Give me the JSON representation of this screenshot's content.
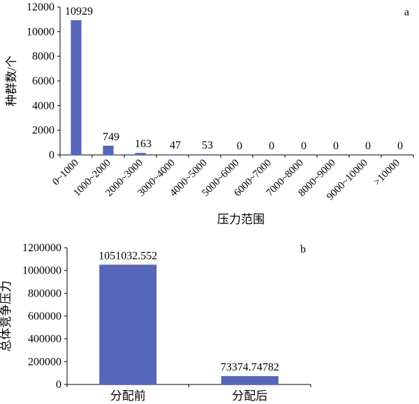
{
  "chart_data": [
    {
      "type": "bar",
      "panel_label": "a",
      "xlabel": "压力范围",
      "ylabel": "种群数/个",
      "categories": [
        "0~1000",
        "1000~2000",
        "2000~3000",
        "3000~4000",
        "4000~5000",
        "5000~6000",
        "6000~7000",
        "7000~8000",
        "8000~9000",
        "9000~10000",
        ">10000"
      ],
      "values": [
        10929,
        749,
        163,
        47,
        53,
        0,
        0,
        0,
        0,
        0,
        0
      ],
      "data_labels": [
        "10929",
        "749",
        "163",
        "47",
        "53",
        "0",
        "0",
        "0",
        "0",
        "0",
        "0"
      ],
      "ylim": [
        0,
        12000
      ],
      "yticks": [
        "0",
        "2000",
        "4000",
        "6000",
        "8000",
        "10000",
        "12000"
      ],
      "bar_color": "#5566bb",
      "grid": false
    },
    {
      "type": "bar",
      "panel_label": "b",
      "xlabel": "",
      "ylabel": "总体竞争压力",
      "categories": [
        "分配前",
        "分配后"
      ],
      "values": [
        1051032.552,
        73374.74782
      ],
      "data_labels": [
        "1051032.552",
        "73374.74782"
      ],
      "ylim": [
        0,
        1200000
      ],
      "yticks": [
        "0",
        "200000",
        "400000",
        "600000",
        "800000",
        "1000000",
        "1200000"
      ],
      "bar_color": "#5566bb",
      "grid": false
    }
  ]
}
